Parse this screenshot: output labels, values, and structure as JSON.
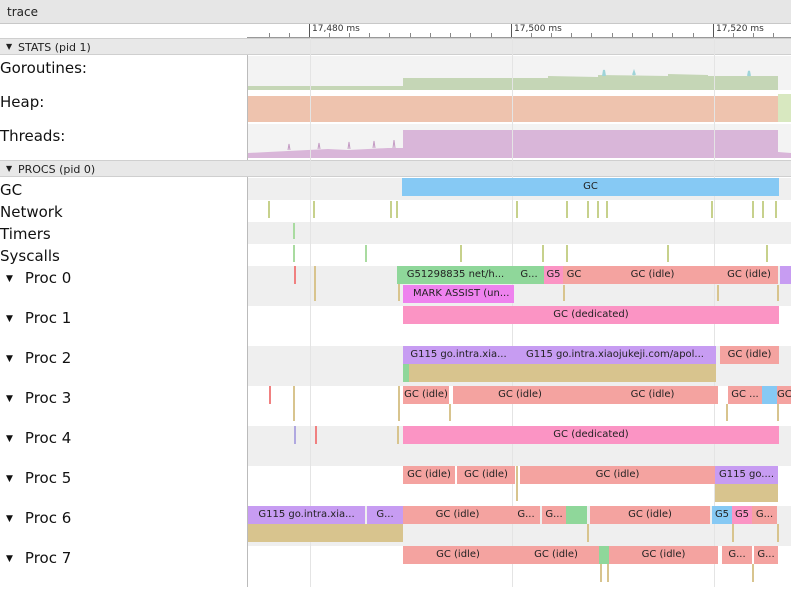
{
  "window": {
    "title": "trace"
  },
  "ruler": {
    "labels": [
      "17,480 ms",
      "17,500 ms",
      "17,520 ms"
    ]
  },
  "sections": {
    "stats": {
      "label": "STATS (pid 1)"
    },
    "procs": {
      "label": "PROCS (pid 0)"
    }
  },
  "stats_rows": [
    "Goroutines:",
    "Heap:",
    "Threads:"
  ],
  "proc_rows": [
    "GC",
    "Network",
    "Timers",
    "Syscalls"
  ],
  "procs": [
    "Proc 0",
    "Proc 1",
    "Proc 2",
    "Proc 3",
    "Proc 4",
    "Proc 5",
    "Proc 6",
    "Proc 7"
  ],
  "slices": {
    "gc": "GC",
    "p0": [
      "G51298835 net/h...",
      "G...",
      "G5",
      "GC",
      "GC (idle)",
      "GC (idle)"
    ],
    "p0_assist": "MARK ASSIST (un...",
    "p1": "GC (dedicated)",
    "p2": [
      "G115 go.intra.xia...",
      "G115 go.intra.xiaojukeji.com/apol...",
      "GC (idle)"
    ],
    "p3": [
      "GC (idle)",
      "GC (idle)",
      "GC (idle)",
      "GC ...",
      "GC"
    ],
    "p4": "GC (dedicated)",
    "p5": [
      "GC (idle)",
      "GC (idle)",
      "GC (idle)",
      "G115 go...."
    ],
    "p6": [
      "G115 go.intra.xia...",
      "G...",
      "GC (idle)",
      "G...",
      "G...",
      "GC (idle)",
      "G5",
      "G5",
      "G..."
    ],
    "p7": [
      "GC (idle)",
      "GC (idle)",
      "GC (idle)",
      "G...",
      "G..."
    ]
  },
  "colors": {
    "gc_blue": "#86c9f4",
    "idle_pink": "#f4a3a0",
    "dedicated": "#fb94c4",
    "goroutine_purple": "#c79cf2",
    "green": "#8fd79a",
    "tan": "#d8c48e",
    "heap": "#eec3ae",
    "threads": "#d9b6d9",
    "goroutines": "#c5d6b6"
  }
}
